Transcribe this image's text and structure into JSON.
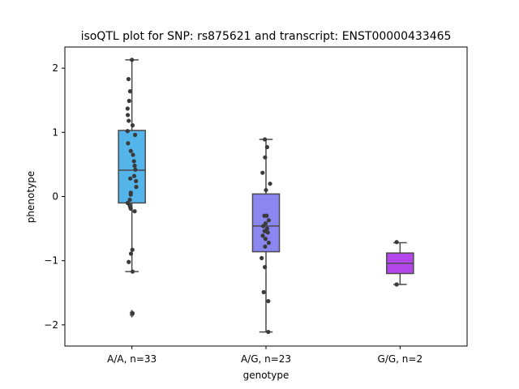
{
  "chart_data": {
    "type": "box",
    "title": "isoQTL plot for SNP: rs875621 and transcript: ENST00000433465",
    "xlabel": "genotype",
    "ylabel": "phenotype",
    "ylim": [
      -2.33,
      2.33
    ],
    "yticks": [
      -2,
      -1,
      0,
      1,
      2
    ],
    "grid": false,
    "categories": [
      "A/A, n=33",
      "A/G, n=23",
      "G/G, n=2"
    ],
    "colors": [
      "#54b5ea",
      "#8b87f1",
      "#b447ec"
    ],
    "boxes": [
      {
        "q1": -0.1,
        "median": 0.41,
        "q3": 1.03,
        "whisker_low": -1.17,
        "whisker_high": 2.13,
        "outliers": [
          -1.81,
          -1.84
        ]
      },
      {
        "q1": -0.86,
        "median": -0.46,
        "q3": 0.04,
        "whisker_low": -2.11,
        "whisker_high": 0.89,
        "outliers": []
      },
      {
        "q1": -1.2,
        "median": -1.04,
        "q3": -0.88,
        "whisker_low": -1.37,
        "whisker_high": -0.72,
        "outliers": []
      }
    ],
    "points": [
      [
        [
          0.0,
          2.13
        ],
        [
          -0.15,
          1.83
        ],
        [
          -0.08,
          1.64
        ],
        [
          -0.12,
          1.49
        ],
        [
          -0.19,
          1.37
        ],
        [
          -0.18,
          1.27
        ],
        [
          -0.14,
          1.18
        ],
        [
          0.03,
          1.11
        ],
        [
          0.14,
          0.96
        ],
        [
          -0.19,
          1.02
        ],
        [
          -0.17,
          0.83
        ],
        [
          -0.05,
          0.71
        ],
        [
          0.05,
          0.65
        ],
        [
          0.09,
          0.55
        ],
        [
          0.12,
          0.48
        ],
        [
          0.15,
          0.42
        ],
        [
          0.1,
          0.32
        ],
        [
          -0.07,
          0.28
        ],
        [
          0.18,
          0.24
        ],
        [
          0.19,
          0.15
        ],
        [
          -0.05,
          0.06
        ],
        [
          -0.05,
          0.03
        ],
        [
          -0.09,
          -0.05
        ],
        [
          -0.19,
          -0.1
        ],
        [
          -0.12,
          -0.12
        ],
        [
          -0.08,
          -0.16
        ],
        [
          -0.05,
          -0.19
        ],
        [
          0.12,
          -0.23
        ],
        [
          0.02,
          -0.83
        ],
        [
          -0.04,
          -0.89
        ],
        [
          -0.14,
          -1.02
        ],
        [
          0.03,
          -1.17
        ],
        [
          0.03,
          -1.82
        ]
      ],
      [
        [
          -0.05,
          0.89
        ],
        [
          0.05,
          0.77
        ],
        [
          -0.04,
          0.61
        ],
        [
          -0.15,
          0.37
        ],
        [
          0.18,
          0.2
        ],
        [
          0.0,
          0.1
        ],
        [
          -0.07,
          -0.3
        ],
        [
          0.03,
          -0.3
        ],
        [
          0.12,
          -0.37
        ],
        [
          -0.02,
          -0.42
        ],
        [
          -0.12,
          -0.46
        ],
        [
          0.05,
          -0.5
        ],
        [
          -0.06,
          -0.54
        ],
        [
          0.08,
          -0.56
        ],
        [
          -0.14,
          -0.61
        ],
        [
          -0.02,
          -0.66
        ],
        [
          0.12,
          -0.72
        ],
        [
          -0.04,
          -0.78
        ],
        [
          -0.19,
          -0.96
        ],
        [
          -0.05,
          -1.1
        ],
        [
          -0.1,
          -1.49
        ],
        [
          0.1,
          -1.63
        ],
        [
          0.1,
          -2.11
        ]
      ],
      [
        [
          -0.15,
          -0.71
        ],
        [
          -0.15,
          -1.37
        ]
      ]
    ]
  }
}
